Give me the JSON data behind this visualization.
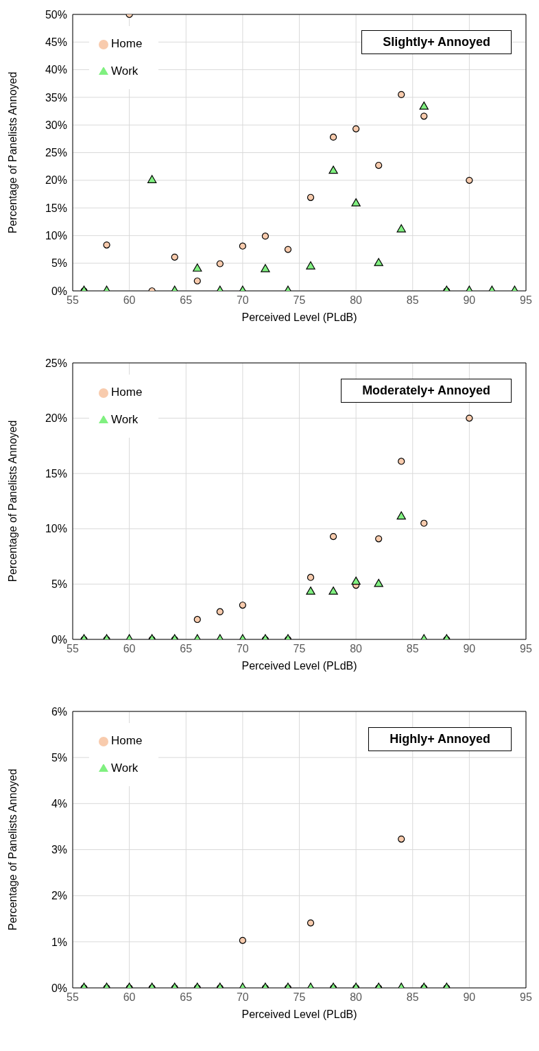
{
  "chart_data": [
    {
      "type": "scatter",
      "title": "Slightly+ Annoyed",
      "xlabel": "Perceived Level (PLdB)",
      "ylabel": "Percentage of Panelists Annoyed",
      "xlim": [
        55,
        95
      ],
      "xticks": [
        55,
        60,
        65,
        70,
        75,
        80,
        85,
        90,
        95
      ],
      "ylim": [
        0,
        50
      ],
      "yticks": [
        {
          "value": 0,
          "label": "0%"
        },
        {
          "value": 5,
          "label": "5%"
        },
        {
          "value": 10,
          "label": "10%"
        },
        {
          "value": 15,
          "label": "15%"
        },
        {
          "value": 20,
          "label": "20%"
        },
        {
          "value": 25,
          "label": "25%"
        },
        {
          "value": 30,
          "label": "30%"
        },
        {
          "value": 35,
          "label": "35%"
        },
        {
          "value": 40,
          "label": "40%"
        },
        {
          "value": 45,
          "label": "45%"
        },
        {
          "value": 50,
          "label": "50%"
        }
      ],
      "grid": true,
      "legend": "top left",
      "series": [
        {
          "name": "Home",
          "color": "#f8cbad",
          "marker": "circle",
          "x": [
            56,
            58,
            60,
            62,
            64,
            66,
            68,
            70,
            72,
            74,
            76,
            78,
            80,
            82,
            84,
            86,
            88,
            90
          ],
          "values": [
            0,
            8.3,
            50,
            0,
            6.1,
            1.8,
            4.9,
            8.1,
            9.9,
            7.5,
            16.9,
            27.8,
            29.3,
            22.7,
            35.5,
            31.6,
            0,
            20
          ]
        },
        {
          "name": "Work",
          "color": "#80f080",
          "marker": "triangle",
          "x": [
            56,
            58,
            62,
            64,
            66,
            68,
            70,
            72,
            74,
            76,
            78,
            80,
            82,
            84,
            86,
            88,
            90,
            92,
            94
          ],
          "values": [
            0,
            0,
            20,
            0,
            4,
            0,
            0,
            3.9,
            0,
            4.4,
            21.7,
            15.8,
            5,
            11.1,
            33.3,
            0,
            0,
            0,
            0
          ]
        }
      ]
    },
    {
      "type": "scatter",
      "title": "Moderately+ Annoyed",
      "xlabel": "Perceived Level (PLdB)",
      "ylabel": "Percentage of Panelists Annoyed",
      "xlim": [
        55,
        95
      ],
      "xticks": [
        55,
        60,
        65,
        70,
        75,
        80,
        85,
        90,
        95
      ],
      "ylim": [
        0,
        25
      ],
      "yticks": [
        {
          "value": 0,
          "label": "0%"
        },
        {
          "value": 5,
          "label": "5%"
        },
        {
          "value": 10,
          "label": "10%"
        },
        {
          "value": 15,
          "label": "15%"
        },
        {
          "value": 20,
          "label": "20%"
        },
        {
          "value": 25,
          "label": "25%"
        }
      ],
      "grid": true,
      "legend": "top left",
      "series": [
        {
          "name": "Home",
          "color": "#f8cbad",
          "marker": "circle",
          "x": [
            56,
            58,
            62,
            64,
            66,
            68,
            70,
            72,
            74,
            76,
            78,
            80,
            82,
            84,
            86,
            88,
            90
          ],
          "values": [
            0,
            0,
            0,
            0,
            1.8,
            2.5,
            3.1,
            0,
            0,
            5.6,
            9.3,
            4.9,
            9.1,
            16.1,
            10.5,
            0,
            20
          ]
        },
        {
          "name": "Work",
          "color": "#80f080",
          "marker": "triangle",
          "x": [
            56,
            58,
            60,
            62,
            64,
            66,
            68,
            70,
            72,
            74,
            76,
            78,
            80,
            82,
            84,
            86,
            88
          ],
          "values": [
            0,
            0,
            0,
            0,
            0,
            0,
            0,
            0,
            0,
            0,
            4.3,
            4.3,
            5.2,
            5,
            11.1,
            0,
            0
          ]
        }
      ]
    },
    {
      "type": "scatter",
      "title": "Highly+ Annoyed",
      "xlabel": "Perceived Level (PLdB)",
      "ylabel": "Percentage of Panelists Annoyed",
      "xlim": [
        55,
        95
      ],
      "xticks": [
        55,
        60,
        65,
        70,
        75,
        80,
        85,
        90,
        95
      ],
      "ylim": [
        0,
        6
      ],
      "yticks": [
        {
          "value": 0,
          "label": "0%"
        },
        {
          "value": 1,
          "label": "1%"
        },
        {
          "value": 2,
          "label": "2%"
        },
        {
          "value": 3,
          "label": "3%"
        },
        {
          "value": 4,
          "label": "4%"
        },
        {
          "value": 5,
          "label": "5%"
        },
        {
          "value": 6,
          "label": "6%"
        }
      ],
      "grid": true,
      "legend": "top left",
      "series": [
        {
          "name": "Home",
          "color": "#f8cbad",
          "marker": "circle",
          "x": [
            56,
            58,
            60,
            62,
            64,
            66,
            68,
            70,
            72,
            74,
            76,
            78,
            80,
            82,
            84,
            86,
            88
          ],
          "values": [
            0,
            0,
            0,
            0,
            0,
            0,
            0,
            1.03,
            0,
            0,
            1.41,
            0,
            0,
            0,
            3.23,
            0,
            0
          ]
        },
        {
          "name": "Work",
          "color": "#80f080",
          "marker": "triangle",
          "x": [
            56,
            58,
            60,
            62,
            64,
            66,
            68,
            70,
            72,
            74,
            76,
            78,
            80,
            82,
            84,
            86,
            88
          ],
          "values": [
            0,
            0,
            0,
            0,
            0,
            0,
            0,
            0,
            0,
            0,
            0,
            0,
            0,
            0,
            0,
            0,
            0
          ]
        }
      ]
    }
  ]
}
